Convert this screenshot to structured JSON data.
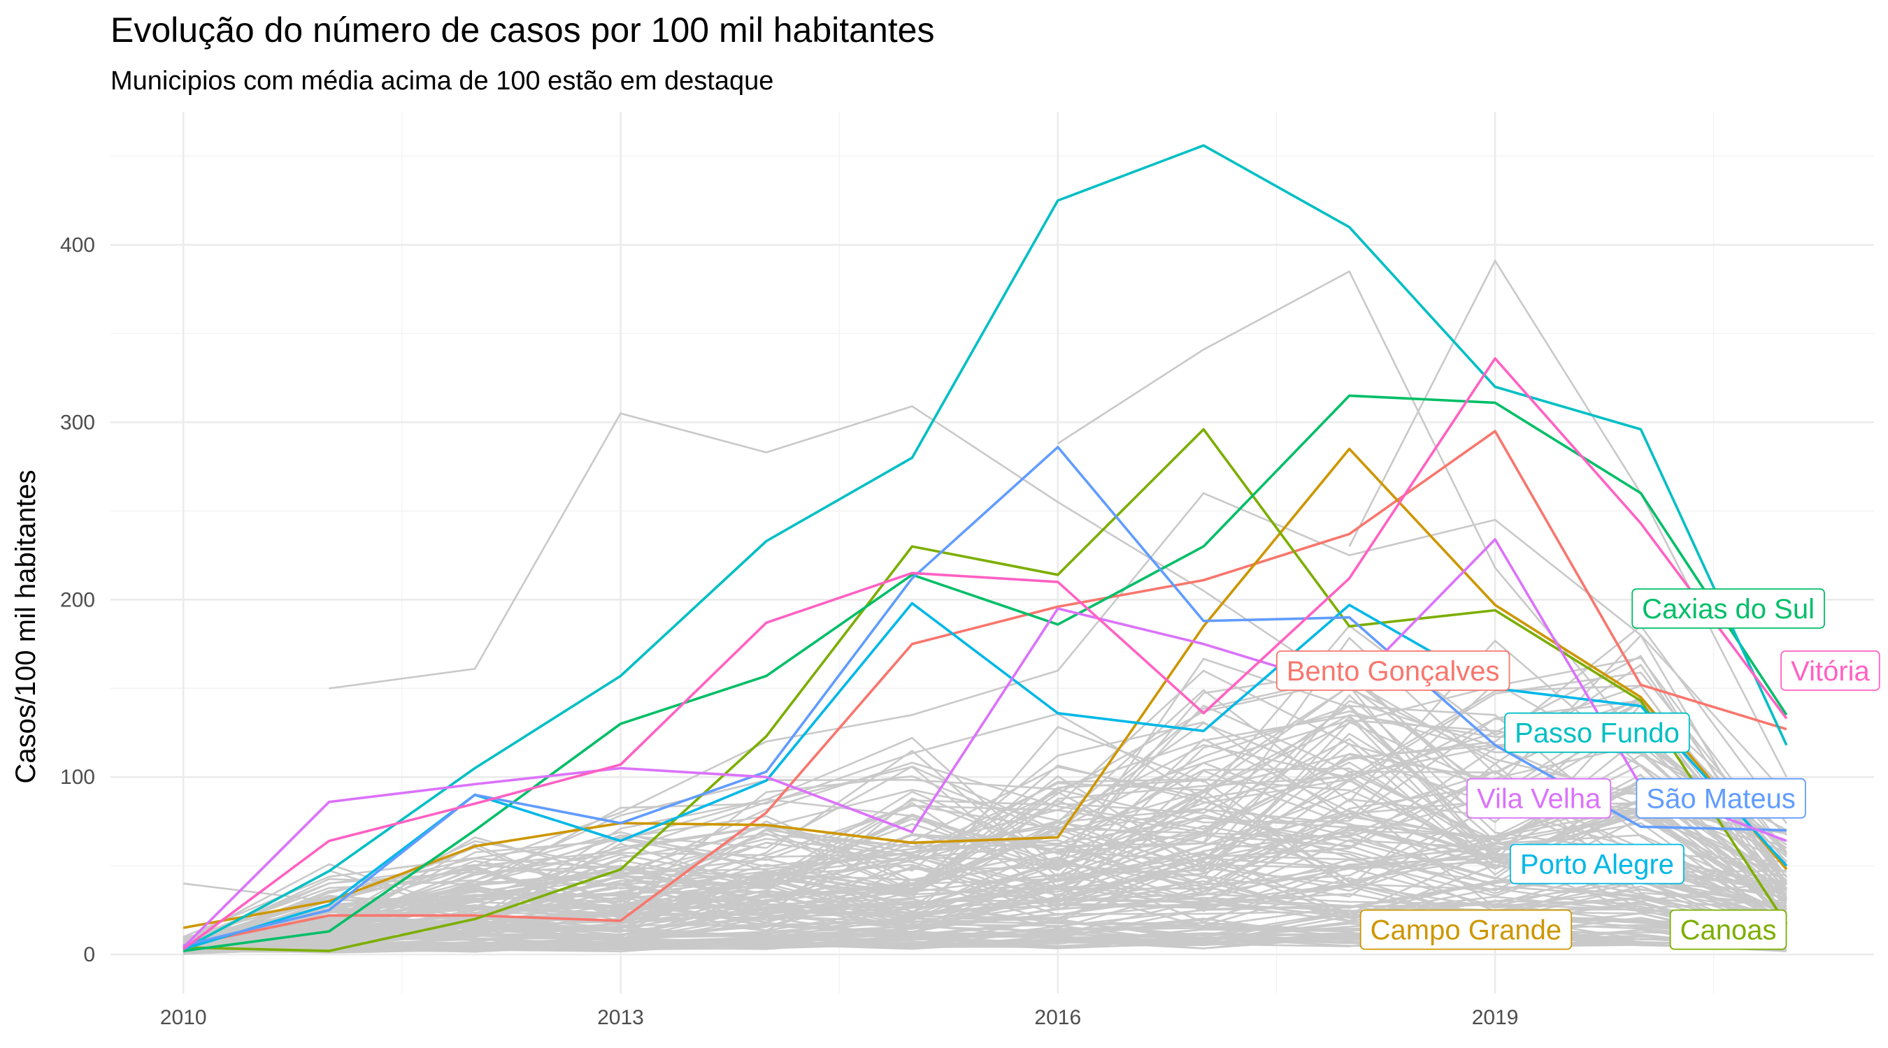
{
  "chart_data": {
    "type": "line",
    "title": "Evolução do número de casos por 100 mil habitantes",
    "subtitle": "Municipios com média acima de 100 estão em destaque",
    "xlabel": "",
    "ylabel": "Casos/100 mil habitantes",
    "xlim": [
      2009.5,
      2021.6
    ],
    "ylim": [
      -22,
      475
    ],
    "x_ticks": [
      2010,
      2013,
      2016,
      2019
    ],
    "x_tick_labels": [
      "2010",
      "2013",
      "2016",
      "2019"
    ],
    "y_ticks": [
      0,
      100,
      200,
      300,
      400
    ],
    "y_tick_labels": [
      "0",
      "100",
      "200",
      "300",
      "400"
    ],
    "x": [
      2010,
      2011,
      2012,
      2013,
      2014,
      2015,
      2016,
      2017,
      2018,
      2019,
      2020,
      2021
    ],
    "series": [
      {
        "name": "Bento Gonçalves",
        "color": "#F8766D",
        "values": [
          5,
          22,
          22,
          19,
          80,
          175,
          196,
          211,
          237,
          295,
          152,
          127
        ],
        "label_at": [
          2018.3,
          160
        ]
      },
      {
        "name": "Campo Grande",
        "color": "#CD9600",
        "values": [
          15,
          30,
          61,
          74,
          73,
          63,
          66,
          185,
          285,
          197,
          145,
          48
        ],
        "label_at": [
          2018.8,
          14
        ]
      },
      {
        "name": "Canoas",
        "color": "#7CAE00",
        "values": [
          4,
          2,
          20,
          48,
          123,
          230,
          214,
          296,
          185,
          194,
          143,
          17
        ],
        "label_at": [
          2020.6,
          14
        ]
      },
      {
        "name": "Caxias do Sul",
        "color": "#00BE67",
        "values": [
          2,
          13,
          70,
          130,
          157,
          214,
          186,
          230,
          315,
          311,
          260,
          135
        ],
        "label_at": [
          2020.6,
          195
        ]
      },
      {
        "name": "Passo Fundo",
        "color": "#00BFC4",
        "values": [
          3,
          47,
          105,
          157,
          233,
          280,
          425,
          456,
          410,
          320,
          296,
          118
        ],
        "label_at": [
          2019.7,
          125
        ]
      },
      {
        "name": "Porto Alegre",
        "color": "#00B8E7",
        "values": [
          3,
          28,
          90,
          64,
          98,
          198,
          136,
          126,
          197,
          150,
          140,
          50
        ],
        "label_at": [
          2019.7,
          51
        ]
      },
      {
        "name": "São Mateus",
        "color": "#619CFF",
        "values": [
          5,
          25,
          90,
          74,
          103,
          212,
          286,
          188,
          190,
          118,
          72,
          70
        ],
        "label_at": [
          2020.55,
          88
        ]
      },
      {
        "name": "Vila Velha",
        "color": "#DB72FB",
        "values": [
          4,
          86,
          96,
          105,
          100,
          69,
          195,
          175,
          150,
          234,
          95,
          64
        ],
        "label_at": [
          2019.3,
          88
        ]
      },
      {
        "name": "Vitória",
        "color": "#FF61C3",
        "values": [
          3,
          64,
          85,
          107,
          187,
          215,
          210,
          136,
          212,
          336,
          243,
          133
        ],
        "label_at": [
          2021.3,
          160
        ]
      }
    ]
  }
}
